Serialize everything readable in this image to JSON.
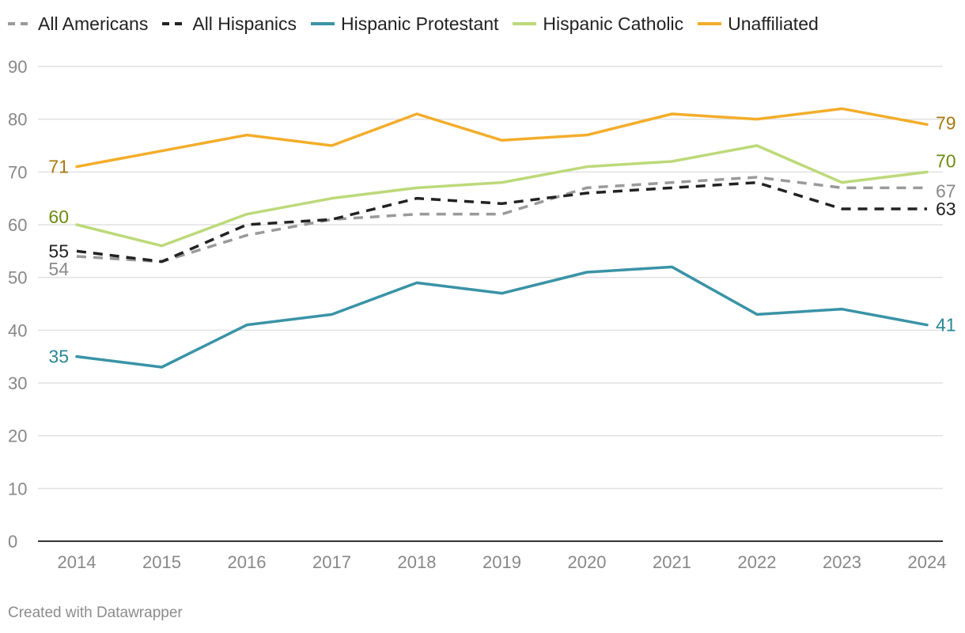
{
  "chart_data": {
    "type": "line",
    "title": "",
    "xlabel": "",
    "ylabel": "",
    "ylim": [
      0,
      90
    ],
    "yticks": [
      0,
      10,
      20,
      30,
      40,
      50,
      60,
      70,
      80,
      90
    ],
    "categories": [
      "2014",
      "2015",
      "2016",
      "2017",
      "2018",
      "2019",
      "2020",
      "2021",
      "2022",
      "2023",
      "2024"
    ],
    "grid": true,
    "legend_position": "top-left",
    "series": [
      {
        "name": "All Americans",
        "color": "#9a9a9a",
        "label_color": "#8a8a8a",
        "dashed": true,
        "values": [
          54,
          53,
          58,
          61,
          62,
          62,
          67,
          68,
          69,
          67,
          67
        ],
        "start_label": "54",
        "end_label": "67"
      },
      {
        "name": "All Hispanics",
        "color": "#222222",
        "label_color": "#222222",
        "dashed": true,
        "values": [
          55,
          53,
          60,
          61,
          65,
          64,
          66,
          67,
          68,
          63,
          63
        ],
        "start_label": "55",
        "end_label": "63"
      },
      {
        "name": "Hispanic Protestant",
        "color": "#3a93a6",
        "label_color": "#2a8796",
        "dashed": false,
        "values": [
          35,
          33,
          41,
          43,
          49,
          47,
          51,
          52,
          43,
          44,
          41
        ],
        "start_label": "35",
        "end_label": "41"
      },
      {
        "name": "Hispanic Catholic",
        "color": "#bdd97a",
        "label_color": "#6d8a12",
        "dashed": false,
        "values": [
          60,
          56,
          62,
          65,
          67,
          68,
          71,
          72,
          75,
          68,
          70
        ],
        "start_label": "60",
        "end_label": "70"
      },
      {
        "name": "Unaffiliated",
        "color": "#f3ad2b",
        "label_color": "#a87812",
        "dashed": false,
        "values": [
          71,
          74,
          77,
          75,
          81,
          76,
          77,
          81,
          80,
          82,
          79
        ],
        "start_label": "71",
        "end_label": "79"
      }
    ]
  },
  "footer": {
    "credit": "Created with Datawrapper"
  }
}
